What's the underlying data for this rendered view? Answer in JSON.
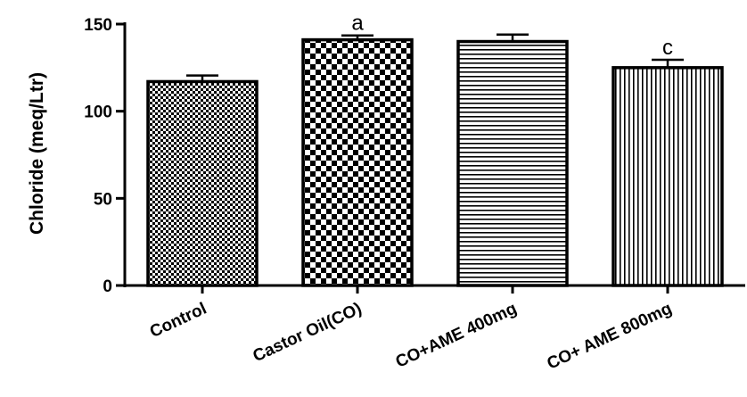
{
  "chart_data": {
    "type": "bar",
    "title": "",
    "xlabel": "",
    "ylabel": "Chloride (meq/Ltr)",
    "ylim": [
      0,
      150
    ],
    "yticks": [
      0,
      50,
      100,
      150
    ],
    "categories": [
      "Control",
      "Castor Oil(CO)",
      "CO+AME 400mg",
      "CO+ AME 800mg"
    ],
    "values": [
      117,
      141,
      140,
      125
    ],
    "errors": [
      3.5,
      2.5,
      4,
      4.5
    ],
    "annotations": [
      "",
      "a",
      "",
      "c"
    ],
    "patterns": [
      "small-checker",
      "large-checker",
      "horizontal-lines",
      "vertical-lines"
    ],
    "grid": false,
    "colors": {
      "bar_stroke": "#000000",
      "background": "#ffffff"
    }
  }
}
